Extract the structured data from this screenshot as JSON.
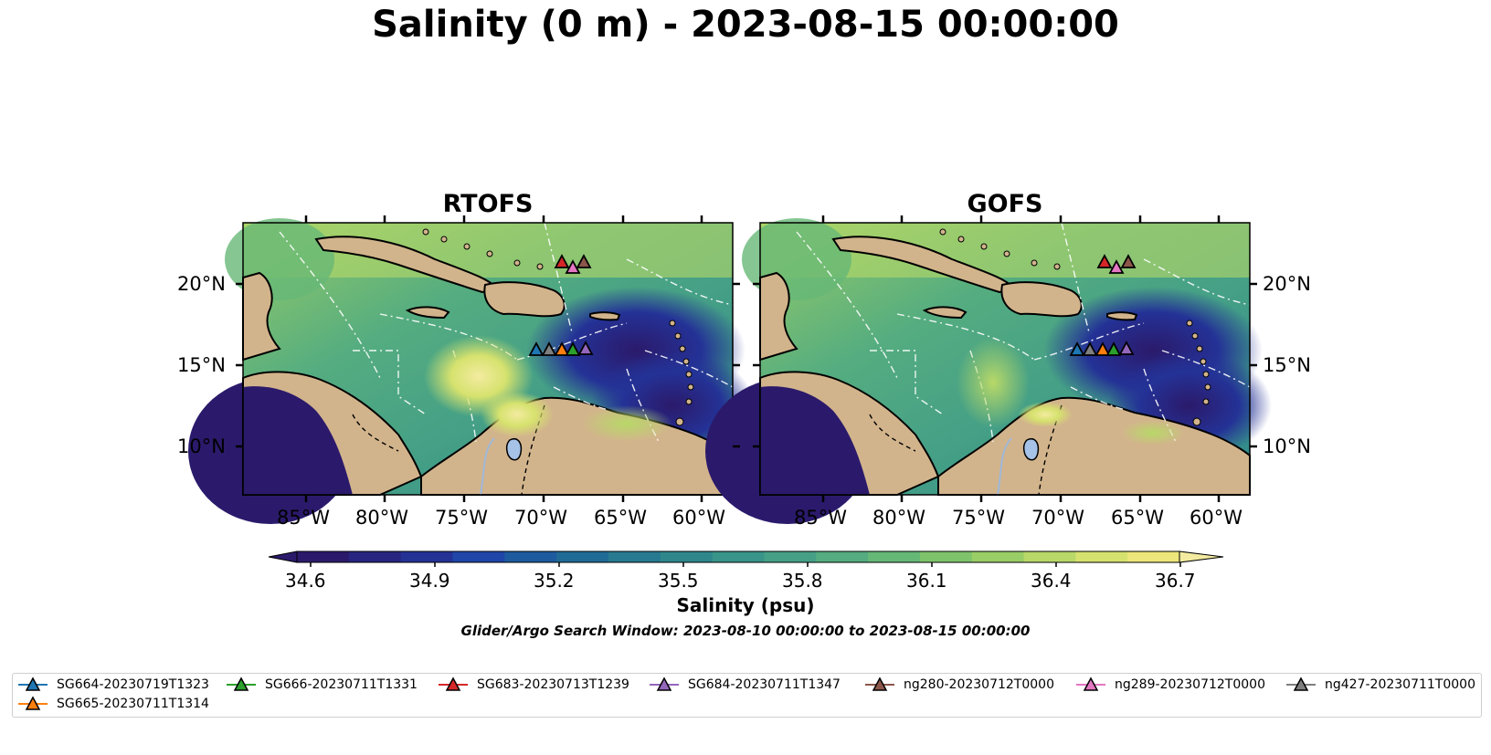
{
  "title": "Salinity (0 m) - 2023-08-15 00:00:00",
  "panels": [
    {
      "name": "RTOFS"
    },
    {
      "name": "GOFS"
    }
  ],
  "lat_labels": [
    "20°N",
    "15°N",
    "10°N"
  ],
  "lon_labels": [
    "85°W",
    "80°W",
    "75°W",
    "70°W",
    "65°W",
    "60°W"
  ],
  "colorbar": {
    "label": "Salinity (psu)",
    "ticks": [
      "34.6",
      "34.9",
      "35.2",
      "35.5",
      "35.8",
      "36.1",
      "36.4",
      "36.7"
    ],
    "colors": [
      "#2b1a6b",
      "#27257f",
      "#243296",
      "#1f46a8",
      "#1d5b9e",
      "#1f6b96",
      "#277a90",
      "#2f878c",
      "#399489",
      "#45a086",
      "#54ac80",
      "#66b877",
      "#7ec36c",
      "#99cd66",
      "#b8d868",
      "#d6e26e",
      "#ede67a"
    ]
  },
  "search_window": "Glider/Argo Search Window: 2023-08-10 00:00:00 to 2023-08-15 00:00:00",
  "legend": [
    {
      "label": "SG664-20230719T1323",
      "color": "#1f77b4"
    },
    {
      "label": "SG665-20230711T1314",
      "color": "#ff7f0e"
    },
    {
      "label": "SG666-20230711T1331",
      "color": "#2ca02c"
    },
    {
      "label": "SG683-20230713T1239",
      "color": "#d62728"
    },
    {
      "label": "SG684-20230711T1347",
      "color": "#9467bd"
    },
    {
      "label": "ng280-20230712T0000",
      "color": "#8c564b"
    },
    {
      "label": "ng289-20230712T0000",
      "color": "#e377c2"
    },
    {
      "label": "ng427-20230711T0000",
      "color": "#7f7f7f"
    }
  ],
  "colors": {
    "land": "#d2b48c",
    "lake": "#a6c2e6",
    "ocean_low": "#2b1a6b",
    "ocean_high": "#ede67a"
  }
}
